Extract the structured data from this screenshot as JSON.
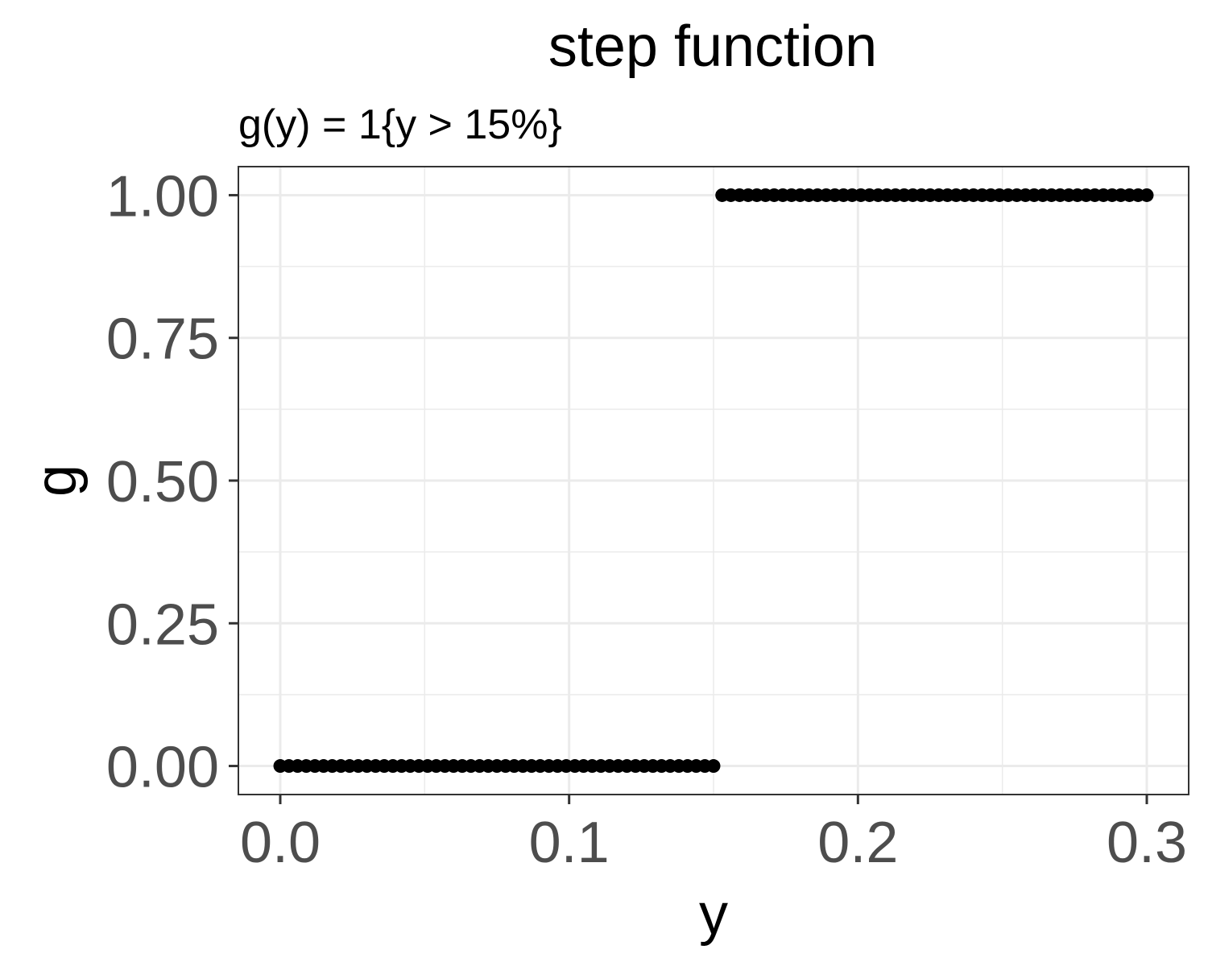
{
  "chart_data": {
    "type": "scatter",
    "title": "step function",
    "subtitle": "g(y) = 1{y > 15%}",
    "xlabel": "y",
    "ylabel": "g",
    "xlim": [
      -0.0145,
      0.3145
    ],
    "ylim": [
      -0.05,
      1.05
    ],
    "x_ticks": [
      0.0,
      0.1,
      0.2,
      0.3
    ],
    "x_tick_labels": [
      "0.0",
      "0.1",
      "0.2",
      "0.3"
    ],
    "y_ticks": [
      0.0,
      0.25,
      0.5,
      0.75,
      1.0
    ],
    "y_tick_labels": [
      "0.00",
      "0.25",
      "0.50",
      "0.75",
      "1.00"
    ],
    "grid": true,
    "point_color": "#000000",
    "series": [
      {
        "x_start": 0.0,
        "x_end": 0.3,
        "x_step": 0.003,
        "threshold": 0.15,
        "y_below": 0,
        "y_above": 1
      }
    ]
  }
}
